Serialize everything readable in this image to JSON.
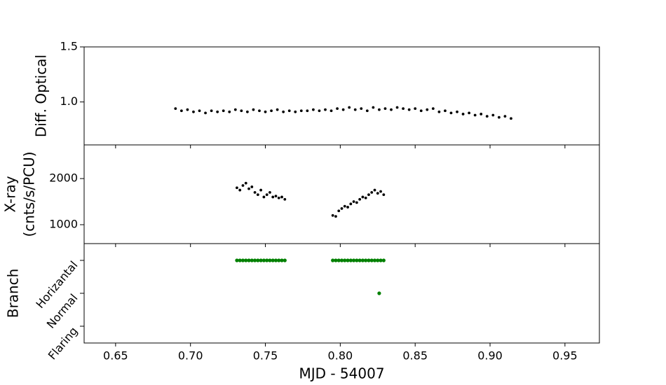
{
  "chart_data": [
    {
      "type": "scatter",
      "ylabel": [
        "Diff. Optical"
      ],
      "color": "#000000",
      "xlim": [
        0.629,
        0.973
      ],
      "ylim": [
        0.61,
        1.5
      ],
      "yticks": [
        {
          "value": 1.0,
          "label": "1.0"
        },
        {
          "value": 1.5,
          "label": "1.5"
        }
      ],
      "x": [
        0.69,
        0.694,
        0.698,
        0.702,
        0.706,
        0.71,
        0.714,
        0.718,
        0.722,
        0.726,
        0.73,
        0.734,
        0.738,
        0.742,
        0.746,
        0.75,
        0.754,
        0.758,
        0.762,
        0.766,
        0.77,
        0.774,
        0.778,
        0.782,
        0.786,
        0.79,
        0.794,
        0.798,
        0.802,
        0.806,
        0.81,
        0.814,
        0.818,
        0.822,
        0.826,
        0.83,
        0.834,
        0.838,
        0.842,
        0.846,
        0.85,
        0.854,
        0.858,
        0.862,
        0.866,
        0.87,
        0.874,
        0.878,
        0.882,
        0.886,
        0.89,
        0.894,
        0.898,
        0.902,
        0.906,
        0.91,
        0.914
      ],
      "values": [
        0.94,
        0.92,
        0.93,
        0.91,
        0.92,
        0.9,
        0.92,
        0.91,
        0.92,
        0.91,
        0.93,
        0.92,
        0.91,
        0.93,
        0.92,
        0.91,
        0.92,
        0.93,
        0.91,
        0.92,
        0.91,
        0.92,
        0.92,
        0.93,
        0.92,
        0.93,
        0.92,
        0.94,
        0.93,
        0.95,
        0.93,
        0.94,
        0.92,
        0.95,
        0.93,
        0.94,
        0.93,
        0.95,
        0.94,
        0.93,
        0.94,
        0.92,
        0.93,
        0.94,
        0.91,
        0.92,
        0.9,
        0.91,
        0.89,
        0.9,
        0.88,
        0.89,
        0.87,
        0.88,
        0.86,
        0.87,
        0.85
      ]
    },
    {
      "type": "scatter",
      "ylabel": [
        "X-ray",
        "(cnts/s/PCU)"
      ],
      "color": "#000000",
      "xlim": [
        0.629,
        0.973
      ],
      "ylim": [
        590,
        2730
      ],
      "yticks": [
        1000,
        2000
      ],
      "x": [
        0.731,
        0.733,
        0.735,
        0.737,
        0.739,
        0.741,
        0.743,
        0.745,
        0.747,
        0.749,
        0.751,
        0.753,
        0.755,
        0.757,
        0.759,
        0.761,
        0.763,
        0.795,
        0.797,
        0.799,
        0.801,
        0.803,
        0.805,
        0.807,
        0.809,
        0.811,
        0.813,
        0.815,
        0.817,
        0.819,
        0.821,
        0.823,
        0.825,
        0.827,
        0.829
      ],
      "values": [
        1800,
        1750,
        1850,
        1900,
        1780,
        1820,
        1700,
        1650,
        1750,
        1600,
        1650,
        1700,
        1600,
        1620,
        1580,
        1600,
        1550,
        1200,
        1180,
        1300,
        1350,
        1400,
        1380,
        1450,
        1500,
        1480,
        1550,
        1600,
        1580,
        1650,
        1700,
        1750,
        1680,
        1720,
        1650
      ]
    },
    {
      "type": "scatter",
      "ylabel": [
        "Branch"
      ],
      "xlabel": "MJD - 54007",
      "color": "#008000",
      "xlim": [
        0.629,
        0.973
      ],
      "ylim": [
        -0.51,
        2.51
      ],
      "xticks": [
        0.65,
        {
          "value": 0.7,
          "label": "0.70"
        },
        0.75,
        {
          "value": 0.8,
          "label": "0.80"
        },
        0.85,
        {
          "value": 0.9,
          "label": "0.90"
        },
        0.95
      ],
      "yticks": [
        {
          "value": 0,
          "label": "Flaring"
        },
        {
          "value": 1,
          "label": "Normal"
        },
        {
          "value": 2,
          "label": "Horizantal"
        }
      ],
      "x": [
        0.731,
        0.733,
        0.735,
        0.737,
        0.739,
        0.741,
        0.743,
        0.745,
        0.747,
        0.749,
        0.751,
        0.753,
        0.755,
        0.757,
        0.759,
        0.761,
        0.763,
        0.795,
        0.797,
        0.799,
        0.801,
        0.803,
        0.805,
        0.807,
        0.809,
        0.811,
        0.813,
        0.815,
        0.817,
        0.819,
        0.821,
        0.823,
        0.825,
        0.827,
        0.829,
        0.826
      ],
      "values": [
        2,
        2,
        2,
        2,
        2,
        2,
        2,
        2,
        2,
        2,
        2,
        2,
        2,
        2,
        2,
        2,
        2,
        2,
        2,
        2,
        2,
        2,
        2,
        2,
        2,
        2,
        2,
        2,
        2,
        2,
        2,
        2,
        2,
        2,
        2,
        1
      ]
    }
  ]
}
